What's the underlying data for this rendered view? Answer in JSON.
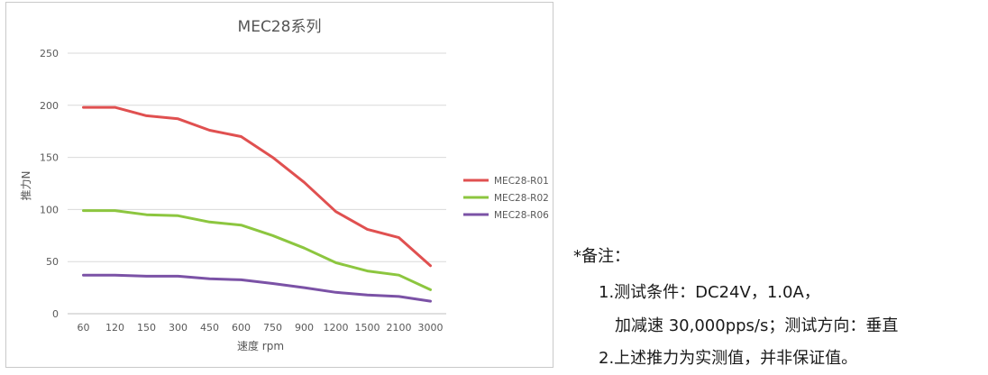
{
  "chart_data": {
    "type": "line",
    "title": "MEC28系列",
    "xlabel": "速度 rpm",
    "ylabel": "推力N",
    "categories": [
      "60",
      "120",
      "150",
      "300",
      "450",
      "600",
      "750",
      "900",
      "1200",
      "1500",
      "2100",
      "3000"
    ],
    "ylim": [
      0,
      250
    ],
    "yticks": [
      0,
      50,
      100,
      150,
      200,
      250
    ],
    "grid": true,
    "legend_position": "right",
    "series": [
      {
        "name": "MEC28-R01",
        "color": "#e05050",
        "values": [
          198,
          198,
          190,
          187,
          176,
          170,
          150,
          126,
          98,
          81,
          73,
          46
        ]
      },
      {
        "name": "MEC28-R02",
        "color": "#8cc63f",
        "values": [
          99,
          99,
          95,
          94,
          88,
          85,
          75,
          63,
          49,
          41,
          37,
          23
        ]
      },
      {
        "name": "MEC28-R06",
        "color": "#7b52a6",
        "values": [
          37,
          37,
          36,
          36,
          33.5,
          32.5,
          29,
          25,
          20.5,
          18,
          16.5,
          12
        ]
      }
    ]
  },
  "notes": {
    "header": "*备注：",
    "line1": "1.测试条件：DC24V，1.0A，",
    "line2": "加减速 30,000pps/s；测试方向：垂直",
    "line3": "2.上述推力为实测值，并非保证值。"
  }
}
